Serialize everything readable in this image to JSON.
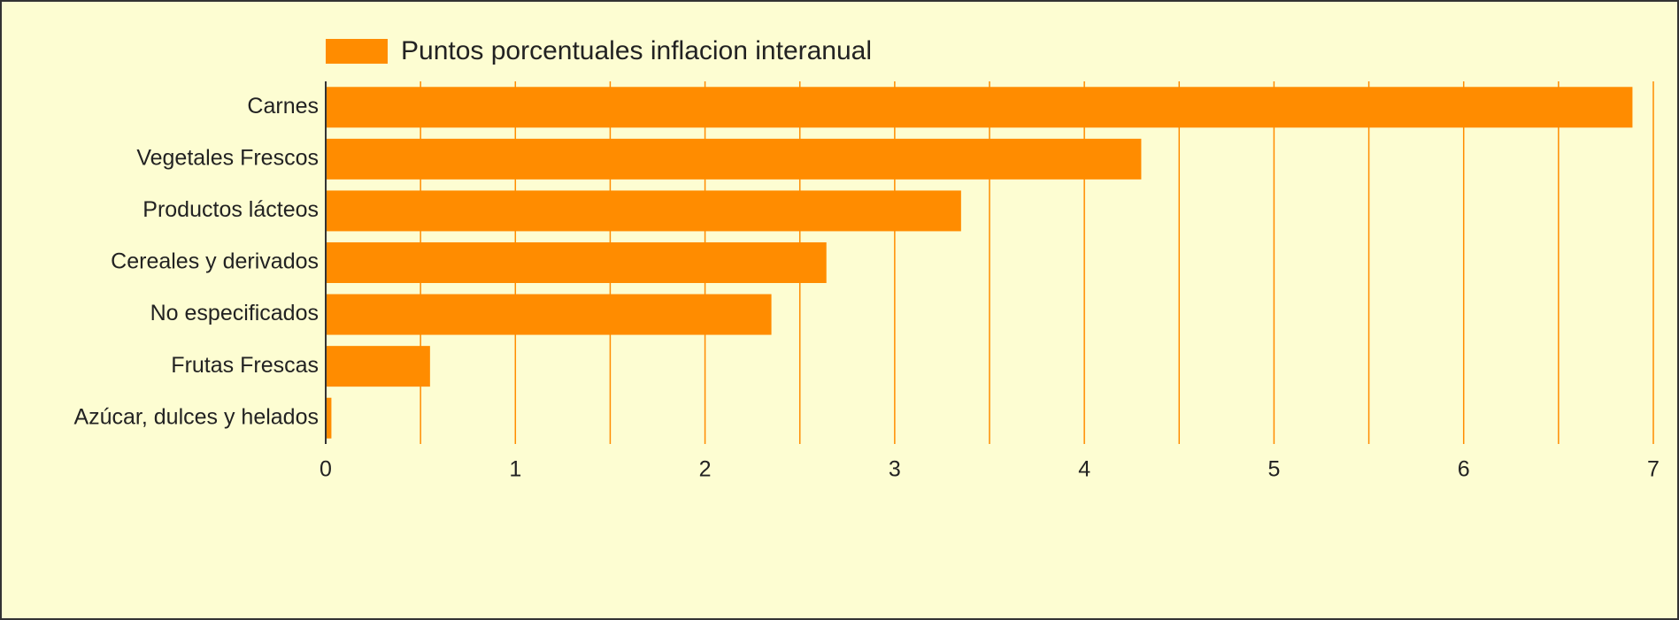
{
  "chart_data": {
    "type": "bar",
    "orientation": "horizontal",
    "legend": "top",
    "series": [
      {
        "name": "Puntos porcentuales inflacion interanual",
        "color": "#ff8c00",
        "values": [
          6.89,
          4.3,
          3.35,
          2.64,
          2.35,
          0.55,
          0.03
        ]
      }
    ],
    "categories": [
      "Carnes",
      "Vegetales Frescos",
      "Productos lácteos",
      "Cereales y derivados",
      "No especificados",
      "Frutas Frescas",
      "Azúcar, dulces y helados"
    ],
    "xlim": [
      0,
      7
    ],
    "xticks": [
      0,
      1,
      2,
      3,
      4,
      5,
      6,
      7
    ],
    "xminorticks": [
      0.5,
      1.5,
      2.5,
      3.5,
      4.5,
      5.5,
      6.5
    ],
    "grid": true,
    "grid_color": "#ff8c00"
  }
}
